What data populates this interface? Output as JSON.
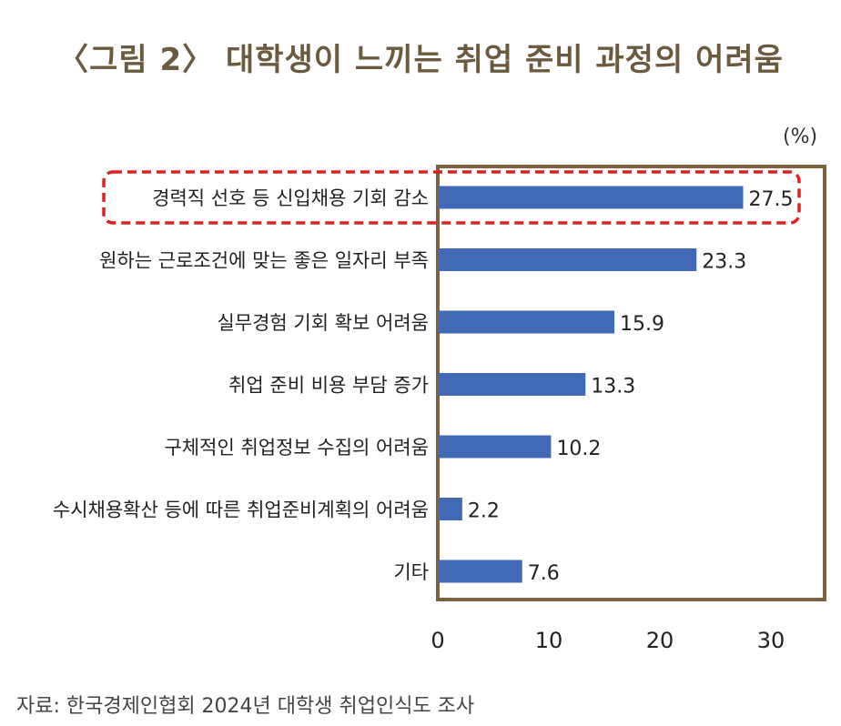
{
  "title": "〈그림 2〉 대학생이 느끼는 취업 준비 과정의 어려움",
  "unit_label": "(%)",
  "source": "자료: 한국경제인협회 2024년 대학생 취업인식도 조사",
  "colors": {
    "bar": "#4169b5",
    "frame": "#7a6140",
    "highlight": "#e02020",
    "title": "#6b5a3e"
  },
  "chart_data": {
    "type": "bar",
    "orientation": "horizontal",
    "categories": [
      "경력직 선호 등 신입채용 기회 감소",
      "원하는 근로조건에 맞는 좋은 일자리 부족",
      "실무경험 기회 확보 어려움",
      "취업 준비 비용 부담 증가",
      "구체적인 취업정보 수집의 어려움",
      "수시채용확산 등에 따른 취업준비계획의 어려움",
      "기타"
    ],
    "values": [
      27.5,
      23.3,
      15.9,
      13.3,
      10.2,
      2.2,
      7.6
    ],
    "value_labels": [
      "27.5",
      "23.3",
      "15.9",
      "13.3",
      "10.2",
      "2.2",
      "7.6"
    ],
    "xlim": [
      0,
      35
    ],
    "xticks": [
      0,
      10,
      20,
      30
    ],
    "xtick_labels": [
      "0",
      "10",
      "20",
      "30"
    ],
    "highlighted_category_index": 0,
    "grid": false,
    "legend": "none"
  }
}
